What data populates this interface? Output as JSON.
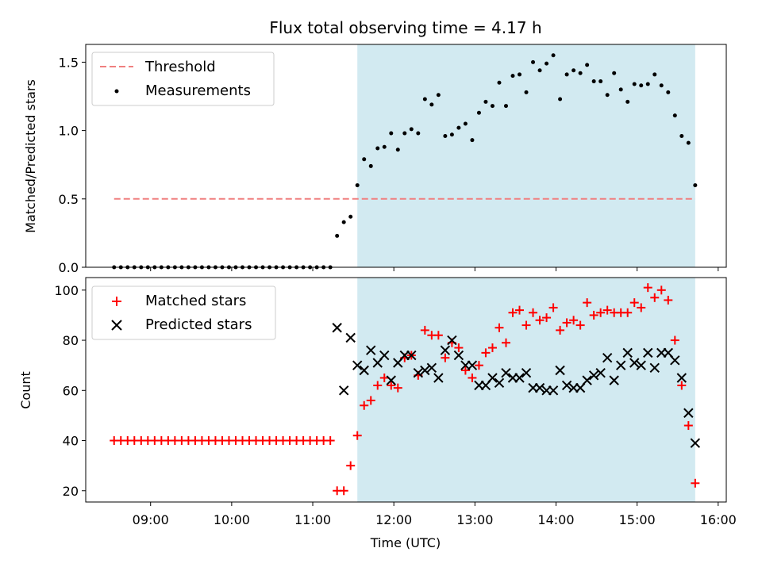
{
  "chart_data": [
    {
      "type": "scatter",
      "title": "Flux total observing time = 4.17 h",
      "xlabel": "",
      "ylabel": "Matched/Predicted stars",
      "x_is_time": true,
      "xlim": [
        "08:12",
        "16:06"
      ],
      "ylim": [
        0,
        1.63
      ],
      "yticks": [
        0.0,
        0.5,
        1.0,
        1.5
      ],
      "ytick_labels": [
        "0.0",
        "0.5",
        "1.0",
        "1.5"
      ],
      "grid": false,
      "legend_position": "upper left",
      "shaded_span": [
        "11:33",
        "15:43"
      ],
      "threshold": {
        "name": "Threshold",
        "value": 0.5,
        "start": "08:33",
        "end": "15:43"
      },
      "series": [
        {
          "name": "Measurements",
          "x": [
            "08:33",
            "08:38",
            "08:43",
            "08:48",
            "08:53",
            "08:58",
            "09:03",
            "09:08",
            "09:13",
            "09:18",
            "09:23",
            "09:28",
            "09:33",
            "09:38",
            "09:43",
            "09:48",
            "09:53",
            "09:58",
            "10:03",
            "10:08",
            "10:13",
            "10:18",
            "10:23",
            "10:28",
            "10:33",
            "10:38",
            "10:43",
            "10:48",
            "10:53",
            "10:58",
            "11:03",
            "11:08",
            "11:13",
            "11:18",
            "11:23",
            "11:28",
            "11:33",
            "11:38",
            "11:43",
            "11:48",
            "11:53",
            "11:58",
            "12:03",
            "12:08",
            "12:13",
            "12:18",
            "12:23",
            "12:28",
            "12:33",
            "12:38",
            "12:43",
            "12:48",
            "12:53",
            "12:58",
            "13:03",
            "13:08",
            "13:13",
            "13:18",
            "13:23",
            "13:28",
            "13:33",
            "13:38",
            "13:43",
            "13:48",
            "13:53",
            "13:58",
            "14:03",
            "14:08",
            "14:13",
            "14:18",
            "14:23",
            "14:28",
            "14:33",
            "14:38",
            "14:43",
            "14:48",
            "14:53",
            "14:58",
            "15:03",
            "15:08",
            "15:13",
            "15:18",
            "15:23",
            "15:28",
            "15:33",
            "15:38",
            "15:43"
          ],
          "values": [
            0,
            0,
            0,
            0,
            0,
            0,
            0,
            0,
            0,
            0,
            0,
            0,
            0,
            0,
            0,
            0,
            0,
            0,
            0,
            0,
            0,
            0,
            0,
            0,
            0,
            0,
            0,
            0,
            0,
            0,
            0,
            0,
            0,
            0.23,
            0.33,
            0.37,
            0.6,
            0.79,
            0.74,
            0.87,
            0.88,
            0.98,
            0.86,
            0.98,
            1.01,
            0.98,
            1.23,
            1.19,
            1.26,
            0.96,
            0.97,
            1.02,
            1.05,
            0.93,
            1.13,
            1.21,
            1.18,
            1.35,
            1.18,
            1.4,
            1.41,
            1.28,
            1.5,
            1.44,
            1.49,
            1.55,
            1.23,
            1.41,
            1.44,
            1.42,
            1.48,
            1.36,
            1.36,
            1.26,
            1.42,
            1.3,
            1.21,
            1.34,
            1.33,
            1.34,
            1.41,
            1.33,
            1.28,
            1.11,
            0.96,
            0.91,
            0.6
          ]
        }
      ]
    },
    {
      "type": "scatter",
      "title": "",
      "xlabel": "Time (UTC)",
      "ylabel": "Count",
      "x_is_time": true,
      "xlim": [
        "08:12",
        "16:06"
      ],
      "ylim": [
        15.5,
        105
      ],
      "yticks": [
        20,
        40,
        60,
        80,
        100
      ],
      "ytick_labels": [
        "20",
        "40",
        "60",
        "80",
        "100"
      ],
      "xticks": [
        "09:00",
        "10:00",
        "11:00",
        "12:00",
        "13:00",
        "14:00",
        "15:00",
        "16:00"
      ],
      "xtick_labels": [
        "09:00",
        "10:00",
        "11:00",
        "12:00",
        "13:00",
        "14:00",
        "15:00",
        "16:00"
      ],
      "grid": false,
      "legend_position": "upper left",
      "shaded_span": [
        "11:33",
        "15:43"
      ],
      "series": [
        {
          "name": "Matched stars",
          "marker": "+",
          "color": "#ff0000",
          "x": [
            "08:33",
            "08:38",
            "08:43",
            "08:48",
            "08:53",
            "08:58",
            "09:03",
            "09:08",
            "09:13",
            "09:18",
            "09:23",
            "09:28",
            "09:33",
            "09:38",
            "09:43",
            "09:48",
            "09:53",
            "09:58",
            "10:03",
            "10:08",
            "10:13",
            "10:18",
            "10:23",
            "10:28",
            "10:33",
            "10:38",
            "10:43",
            "10:48",
            "10:53",
            "10:58",
            "11:03",
            "11:08",
            "11:13",
            "11:18",
            "11:23",
            "11:28",
            "11:33",
            "11:38",
            "11:43",
            "11:48",
            "11:53",
            "11:58",
            "12:03",
            "12:08",
            "12:13",
            "12:18",
            "12:23",
            "12:28",
            "12:33",
            "12:38",
            "12:43",
            "12:48",
            "12:53",
            "12:58",
            "13:03",
            "13:08",
            "13:13",
            "13:18",
            "13:23",
            "13:28",
            "13:33",
            "13:38",
            "13:43",
            "13:48",
            "13:53",
            "13:58",
            "14:03",
            "14:08",
            "14:13",
            "14:18",
            "14:23",
            "14:28",
            "14:33",
            "14:38",
            "14:43",
            "14:48",
            "14:53",
            "14:58",
            "15:03",
            "15:08",
            "15:13",
            "15:18",
            "15:23",
            "15:28",
            "15:33",
            "15:38",
            "15:43"
          ],
          "values": [
            40,
            40,
            40,
            40,
            40,
            40,
            40,
            40,
            40,
            40,
            40,
            40,
            40,
            40,
            40,
            40,
            40,
            40,
            40,
            40,
            40,
            40,
            40,
            40,
            40,
            40,
            40,
            40,
            40,
            40,
            40,
            40,
            40,
            20,
            20,
            30,
            42,
            54,
            56,
            62,
            65,
            62,
            61,
            73,
            74,
            66,
            84,
            82,
            82,
            73,
            79,
            77,
            68,
            65,
            70,
            75,
            77,
            85,
            79,
            91,
            92,
            86,
            91,
            88,
            89,
            93,
            84,
            87,
            88,
            86,
            95,
            90,
            91,
            92,
            91,
            91,
            91,
            95,
            93,
            101,
            97,
            100,
            96,
            80,
            62,
            46,
            23
          ]
        },
        {
          "name": "Predicted stars",
          "marker": "x",
          "color": "#000000",
          "x": [
            "11:18",
            "11:23",
            "11:28",
            "11:33",
            "11:38",
            "11:43",
            "11:48",
            "11:53",
            "11:58",
            "12:03",
            "12:08",
            "12:13",
            "12:18",
            "12:23",
            "12:28",
            "12:33",
            "12:38",
            "12:43",
            "12:48",
            "12:53",
            "12:58",
            "13:03",
            "13:08",
            "13:13",
            "13:18",
            "13:23",
            "13:28",
            "13:33",
            "13:38",
            "13:43",
            "13:48",
            "13:53",
            "13:58",
            "14:03",
            "14:08",
            "14:13",
            "14:18",
            "14:23",
            "14:28",
            "14:33",
            "14:38",
            "14:43",
            "14:48",
            "14:53",
            "14:58",
            "15:03",
            "15:08",
            "15:13",
            "15:18",
            "15:23",
            "15:28",
            "15:33",
            "15:38",
            "15:43"
          ],
          "values": [
            85,
            60,
            81,
            70,
            68,
            76,
            71,
            74,
            64,
            71,
            74,
            74,
            67,
            68,
            69,
            65,
            76,
            80,
            74,
            70,
            70,
            62,
            62,
            65,
            63,
            67,
            65,
            65,
            67,
            61,
            61,
            60,
            60,
            68,
            62,
            61,
            61,
            64,
            66,
            67,
            73,
            64,
            70,
            75,
            71,
            70,
            75,
            69,
            75,
            75,
            72,
            65,
            51,
            39
          ]
        }
      ]
    }
  ]
}
